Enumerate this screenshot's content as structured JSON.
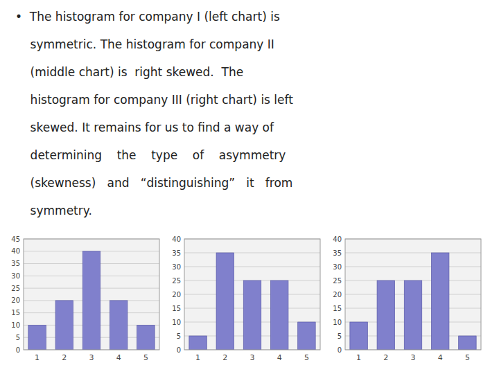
{
  "chart_data": [
    {
      "type": "text",
      "annotations": [
        "•  The histogram for company I (left chart) is",
        "    symmetric. The histogram for company II",
        "    (middle chart) is  right skewed.  The",
        "    histogram for company III (right chart) is left",
        "    skewed. It remains for us to find a way of",
        "    determining    the    type    of    asymmetry",
        "    (skewness)   and   “distinguishing”   it   from",
        "    symmetry."
      ]
    },
    {
      "type": "bar",
      "categories": [
        "1",
        "2",
        "3",
        "4",
        "5"
      ],
      "values": [
        10,
        20,
        40,
        20,
        10
      ],
      "color": "#8080cc",
      "ylim": [
        0,
        45
      ],
      "yticks": [
        0,
        5,
        10,
        15,
        20,
        25,
        30,
        35,
        40,
        45
      ],
      "grid": true
    },
    {
      "type": "bar",
      "categories": [
        "1",
        "2",
        "3",
        "4",
        "5"
      ],
      "values": [
        5,
        35,
        25,
        25,
        10
      ],
      "color": "#8080cc",
      "ylim": [
        0,
        40
      ],
      "yticks": [
        0,
        5,
        10,
        15,
        20,
        25,
        30,
        35,
        40
      ],
      "grid": true
    },
    {
      "type": "bar",
      "categories": [
        "1",
        "2",
        "3",
        "4",
        "5"
      ],
      "values": [
        10,
        25,
        25,
        35,
        5
      ],
      "color": "#8080cc",
      "ylim": [
        0,
        40
      ],
      "yticks": [
        0,
        5,
        10,
        15,
        20,
        25,
        30,
        35,
        40
      ],
      "grid": true
    }
  ]
}
